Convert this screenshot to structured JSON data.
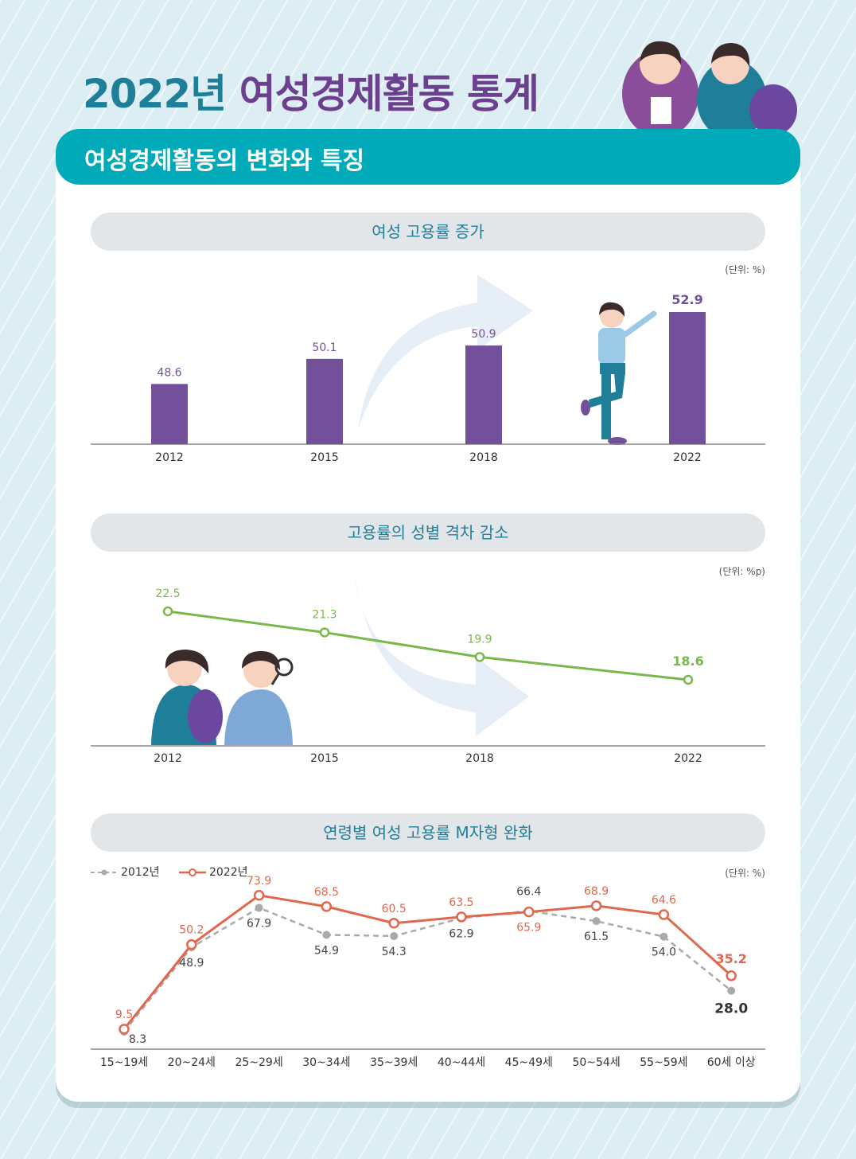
{
  "page": {
    "title_year": "2022년",
    "title_rest": "여성경제활동 통계",
    "banner": "여성경제활동의 변화와 특징"
  },
  "colors": {
    "teal": "#00aab9",
    "purple": "#73509a",
    "green": "#79b94b",
    "orange": "#e1674d",
    "gray": "#aaaaaa"
  },
  "chart_data": [
    {
      "type": "bar",
      "title": "여성 고용률 증가",
      "unit": "(단위: %)",
      "categories": [
        "2012",
        "2015",
        "2018",
        "2022"
      ],
      "values": [
        48.6,
        50.1,
        50.9,
        52.9
      ],
      "labels": [
        "48.6",
        "50.1",
        "50.9",
        "52.9"
      ],
      "ylim": [
        45,
        54
      ]
    },
    {
      "type": "line",
      "title": "고용률의 성별 격차 감소",
      "unit": "(단위: %p)",
      "categories": [
        "2012",
        "2015",
        "2018",
        "2022"
      ],
      "values": [
        22.5,
        21.3,
        19.9,
        18.6
      ],
      "labels": [
        "22.5",
        "21.3",
        "19.9",
        "18.6"
      ],
      "ylim": [
        14,
        24
      ]
    },
    {
      "type": "line",
      "title": "연령별 여성 고용률 M자형 완화",
      "unit": "(단위: %)",
      "categories": [
        "15~19세",
        "20~24세",
        "25~29세",
        "30~34세",
        "35~39세",
        "40~44세",
        "45~49세",
        "50~54세",
        "55~59세",
        "60세 이상"
      ],
      "series": [
        {
          "name": "2012년",
          "values": [
            8.3,
            48.9,
            67.9,
            54.9,
            54.3,
            62.9,
            66.4,
            61.5,
            54.0,
            28.0
          ],
          "labels": [
            "8.3",
            "48.9",
            "67.9",
            "54.9",
            "54.3",
            "62.9",
            "66.4",
            "61.5",
            "54.0",
            "28.0"
          ]
        },
        {
          "name": "2022년",
          "values": [
            9.5,
            50.2,
            73.9,
            68.5,
            60.5,
            63.5,
            65.9,
            68.9,
            64.6,
            35.2
          ],
          "labels": [
            "9.5",
            "50.2",
            "73.9",
            "68.5",
            "60.5",
            "63.5",
            "65.9",
            "68.9",
            "64.6",
            "35.2"
          ]
        }
      ],
      "ylim": [
        0,
        80
      ],
      "legend": "top-left"
    }
  ]
}
